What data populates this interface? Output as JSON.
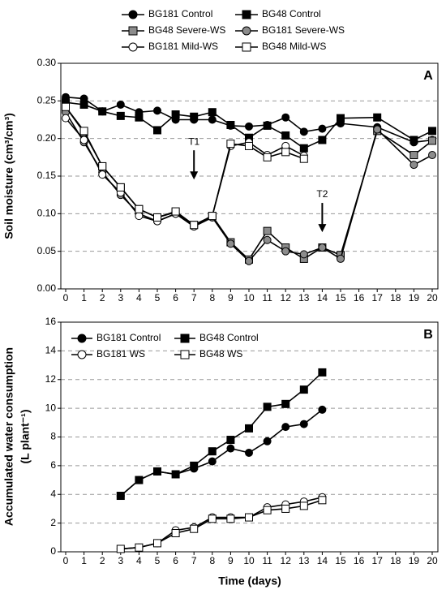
{
  "chart_data": [
    {
      "type": "line",
      "panel_label": "A",
      "ylabel": "Soil moisture (cm³/cm³)",
      "x": [
        0,
        1,
        2,
        3,
        4,
        5,
        6,
        7,
        8,
        9,
        10,
        11,
        12,
        13,
        14,
        15,
        17,
        19,
        20
      ],
      "xlim": [
        0,
        20
      ],
      "xticks": [
        0,
        1,
        2,
        3,
        4,
        5,
        6,
        7,
        8,
        9,
        10,
        11,
        12,
        13,
        14,
        15,
        16,
        17,
        18,
        19,
        20
      ],
      "ylim": [
        0,
        0.3
      ],
      "yticks": [
        {
          "value": 0,
          "label": "0.00"
        },
        {
          "value": 0.05,
          "label": "0.05"
        },
        {
          "value": 0.1,
          "label": "0.10"
        },
        {
          "value": 0.15,
          "label": "0.15"
        },
        {
          "value": 0.2,
          "label": "0.20"
        },
        {
          "value": 0.25,
          "label": "0.25"
        },
        {
          "value": 0.3,
          "label": "0.30"
        }
      ],
      "grid": true,
      "legend": "top",
      "series": [
        {
          "name": "BG181 Control",
          "marker": "circle",
          "color": "#000000",
          "fill": "#000000",
          "values": [
            0.255,
            0.253,
            0.236,
            0.245,
            0.235,
            0.237,
            0.225,
            0.225,
            0.225,
            0.217,
            0.216,
            0.218,
            0.228,
            0.209,
            0.213,
            0.22,
            0.215,
            0.195,
            0.198
          ]
        },
        {
          "name": "BG48 Control",
          "marker": "square",
          "color": "#000000",
          "fill": "#000000",
          "values": [
            0.248,
            0.245,
            0.236,
            0.23,
            0.228,
            0.211,
            0.232,
            0.229,
            0.235,
            0.218,
            0.201,
            0.217,
            0.204,
            0.187,
            0.198,
            0.227,
            0.228,
            0.198,
            0.21
          ]
        },
        {
          "name": "BG48 Severe-WS",
          "marker": "square",
          "color": "#000000",
          "fill": "#8c8c8c",
          "values": [
            0.242,
            0.208,
            0.163,
            0.135,
            0.106,
            0.095,
            0.102,
            0.085,
            0.097,
            0.062,
            0.039,
            0.077,
            0.055,
            0.04,
            0.055,
            0.045,
            0.21,
            0.178,
            0.197
          ]
        },
        {
          "name": "BG181 Severe-WS",
          "marker": "circle",
          "color": "#000000",
          "fill": "#8c8c8c",
          "values": [
            0.235,
            0.195,
            0.155,
            0.125,
            0.1,
            0.09,
            0.1,
            0.083,
            0.095,
            0.06,
            0.037,
            0.065,
            0.05,
            0.046,
            0.055,
            0.04,
            0.212,
            0.165,
            0.178
          ]
        },
        {
          "name": "BG181 Mild-WS",
          "marker": "circle",
          "color": "#000000",
          "fill": "#ffffff",
          "values": [
            0.227,
            0.198,
            0.152,
            0.128,
            0.097,
            0.09,
            0.1,
            0.083,
            0.097,
            0.19,
            0.195,
            0.178,
            0.19,
            0.177,
            null,
            null,
            null,
            null,
            null
          ]
        },
        {
          "name": "BG48 Mild-WS",
          "marker": "square",
          "color": "#000000",
          "fill": "#ffffff",
          "values": [
            0.242,
            0.21,
            0.163,
            0.135,
            0.106,
            0.095,
            0.103,
            0.085,
            0.097,
            0.193,
            0.19,
            0.175,
            0.182,
            0.173,
            null,
            null,
            null,
            null,
            null
          ]
        }
      ],
      "annotations": [
        {
          "text": "T1",
          "x": 7,
          "y": 0.18
        },
        {
          "text": "T2",
          "x": 14,
          "y": 0.11
        }
      ]
    },
    {
      "type": "line",
      "panel_label": "B",
      "ylabel": [
        "Accumulated  water consumption",
        "(L plant⁻¹)"
      ],
      "xlabel": "Time (days)",
      "x": [
        3,
        4,
        5,
        6,
        7,
        8,
        9,
        10,
        11,
        12,
        13,
        14
      ],
      "xlim": [
        0,
        20
      ],
      "xticks": [
        0,
        1,
        2,
        3,
        4,
        5,
        6,
        7,
        8,
        9,
        10,
        11,
        12,
        13,
        14,
        15,
        16,
        17,
        18,
        19,
        20
      ],
      "ylim": [
        0,
        16
      ],
      "yticks": [
        0,
        2,
        4,
        6,
        8,
        10,
        12,
        14,
        16
      ],
      "grid": true,
      "legend": "upper left",
      "series": [
        {
          "name": "BG181 Control",
          "marker": "circle",
          "color": "#000000",
          "fill": "#000000",
          "values": [
            3.9,
            5.0,
            5.6,
            5.4,
            5.8,
            6.3,
            7.2,
            6.9,
            7.7,
            8.7,
            8.9,
            9.9
          ]
        },
        {
          "name": "BG48 Control",
          "marker": "square",
          "color": "#000000",
          "fill": "#000000",
          "values": [
            3.9,
            5.0,
            5.6,
            5.4,
            6.0,
            7.0,
            7.8,
            8.6,
            10.1,
            10.3,
            11.3,
            12.5
          ]
        },
        {
          "name": "BG181 WS",
          "marker": "circle",
          "color": "#000000",
          "fill": "#ffffff",
          "values": [
            0.2,
            0.3,
            0.6,
            1.5,
            1.7,
            2.4,
            2.4,
            2.4,
            3.1,
            3.3,
            3.5,
            3.8
          ]
        },
        {
          "name": "BG48 WS",
          "marker": "square",
          "color": "#000000",
          "fill": "#ffffff",
          "values": [
            0.2,
            0.3,
            0.6,
            1.3,
            1.6,
            2.3,
            2.3,
            2.4,
            2.9,
            3.0,
            3.2,
            3.6
          ]
        }
      ]
    }
  ]
}
